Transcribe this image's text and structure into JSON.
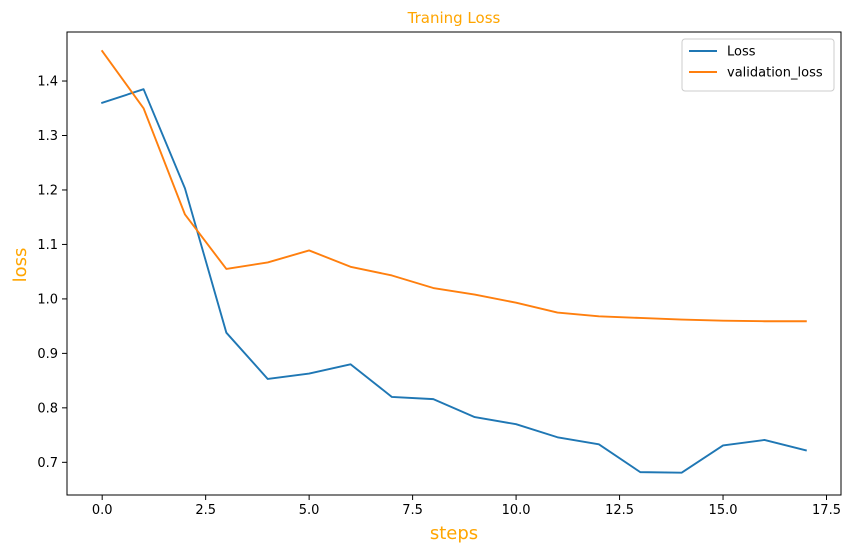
{
  "chart_data": {
    "type": "line",
    "title": "Traning Loss",
    "xlabel": "steps",
    "ylabel": "loss",
    "title_color": "#FFA500",
    "label_color": "#FFA500",
    "xlim": [
      -0.85,
      17.85
    ],
    "ylim": [
      0.64,
      1.49
    ],
    "xticks": [
      0.0,
      2.5,
      5.0,
      7.5,
      10.0,
      12.5,
      15.0,
      17.5
    ],
    "xtick_labels": [
      "0.0",
      "2.5",
      "5.0",
      "7.5",
      "10.0",
      "12.5",
      "15.0",
      "17.5"
    ],
    "yticks": [
      0.7,
      0.8,
      0.9,
      1.0,
      1.1,
      1.2,
      1.3,
      1.4
    ],
    "ytick_labels": [
      "0.7",
      "0.8",
      "0.9",
      "1.0",
      "1.1",
      "1.2",
      "1.3",
      "1.4"
    ],
    "grid": false,
    "legend_position": "top-right",
    "x": [
      0,
      1,
      2,
      3,
      4,
      5,
      6,
      7,
      8,
      9,
      10,
      11,
      12,
      13,
      14,
      15,
      16,
      17
    ],
    "series": [
      {
        "name": "Loss",
        "color": "#1f77b4",
        "values": [
          1.36,
          1.385,
          1.203,
          0.938,
          0.853,
          0.863,
          0.88,
          0.82,
          0.816,
          0.783,
          0.77,
          0.746,
          0.733,
          0.682,
          0.681,
          0.731,
          0.741,
          0.722
        ]
      },
      {
        "name": "validation_loss",
        "color": "#ff7f0e",
        "values": [
          1.455,
          1.35,
          1.155,
          1.055,
          1.067,
          1.089,
          1.059,
          1.043,
          1.02,
          1.008,
          0.993,
          0.975,
          0.968,
          0.965,
          0.962,
          0.96,
          0.959,
          0.959
        ]
      }
    ]
  }
}
